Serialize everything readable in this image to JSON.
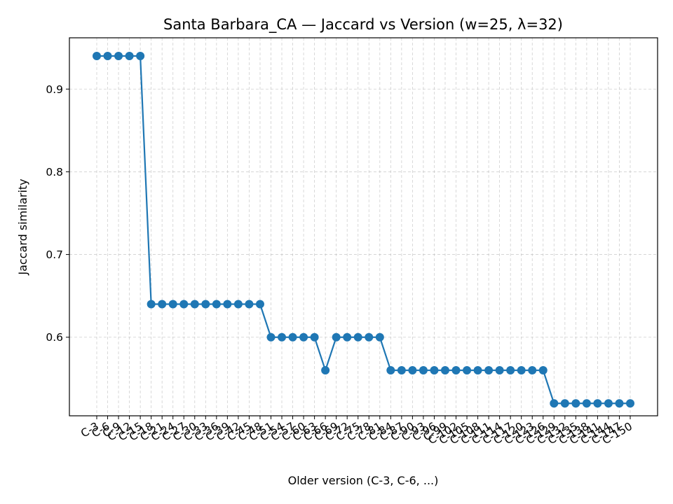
{
  "chart_data": {
    "type": "line",
    "title": "Santa Barbara_CA — Jaccard vs Version (w=25, λ=32)",
    "xlabel": "Older version (C-3, C-6, ...)",
    "ylabel": "Jaccard similarity",
    "categories": [
      "C-3",
      "C-6",
      "C-9",
      "C-12",
      "C-15",
      "C-18",
      "C-21",
      "C-24",
      "C-27",
      "C-30",
      "C-33",
      "C-36",
      "C-39",
      "C-42",
      "C-45",
      "C-48",
      "C-51",
      "C-54",
      "C-57",
      "C-60",
      "C-63",
      "C-66",
      "C-69",
      "C-72",
      "C-75",
      "C-78",
      "C-81",
      "C-84",
      "C-87",
      "C-90",
      "C-93",
      "C-96",
      "C-99",
      "C-102",
      "C-105",
      "C-108",
      "C-111",
      "C-114",
      "C-117",
      "C-120",
      "C-123",
      "C-126",
      "C-129",
      "C-132",
      "C-135",
      "C-138",
      "C-141",
      "C-144",
      "C-147",
      "C-150"
    ],
    "series": [
      {
        "color": "#1f77b4",
        "values": [
          0.94,
          0.94,
          0.94,
          0.94,
          0.94,
          0.64,
          0.64,
          0.64,
          0.64,
          0.64,
          0.64,
          0.64,
          0.64,
          0.64,
          0.64,
          0.64,
          0.6,
          0.6,
          0.6,
          0.6,
          0.6,
          0.56,
          0.6,
          0.6,
          0.6,
          0.6,
          0.6,
          0.56,
          0.56,
          0.56,
          0.56,
          0.56,
          0.56,
          0.56,
          0.56,
          0.56,
          0.56,
          0.56,
          0.56,
          0.56,
          0.56,
          0.56,
          0.52,
          0.52,
          0.52,
          0.52,
          0.52,
          0.52,
          0.52,
          0.52
        ]
      }
    ],
    "yticks": [
      0.6,
      0.7,
      0.8,
      0.9
    ],
    "ylim": [
      0.505,
      0.962
    ],
    "grid": true
  }
}
